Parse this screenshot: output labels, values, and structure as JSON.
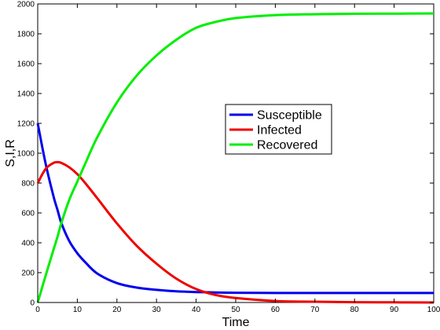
{
  "chart_data": {
    "type": "line",
    "xlabel": "Time",
    "ylabel": "S,I,R",
    "xlim": [
      0,
      100
    ],
    "ylim": [
      0,
      2000
    ],
    "xticks": [
      0,
      10,
      20,
      30,
      40,
      50,
      60,
      70,
      80,
      90,
      100
    ],
    "yticks": [
      0,
      200,
      400,
      600,
      800,
      1000,
      1200,
      1400,
      1600,
      1800,
      2000
    ],
    "grid": false,
    "legend_position": "center-right",
    "x": [
      0,
      2,
      4,
      5,
      6,
      8,
      10,
      12,
      15,
      20,
      25,
      30,
      35,
      40,
      45,
      50,
      60,
      70,
      80,
      90,
      100
    ],
    "series": [
      {
        "name": "Susceptible",
        "color": "#0000ee",
        "values": [
          1200,
          930,
          710,
          620,
          530,
          410,
          330,
          270,
          195,
          130,
          100,
          85,
          75,
          70,
          67,
          65,
          64,
          64,
          64,
          64,
          64
        ]
      },
      {
        "name": "Infected",
        "color": "#ee0000",
        "values": [
          800,
          895,
          935,
          940,
          935,
          905,
          860,
          800,
          700,
          530,
          380,
          260,
          160,
          90,
          50,
          30,
          10,
          5,
          2,
          1,
          0
        ]
      },
      {
        "name": "Recovered",
        "color": "#00ee00",
        "values": [
          0,
          180,
          355,
          440,
          535,
          690,
          810,
          930,
          1105,
          1340,
          1520,
          1655,
          1760,
          1840,
          1880,
          1905,
          1925,
          1931,
          1934,
          1935,
          1936
        ]
      }
    ]
  }
}
